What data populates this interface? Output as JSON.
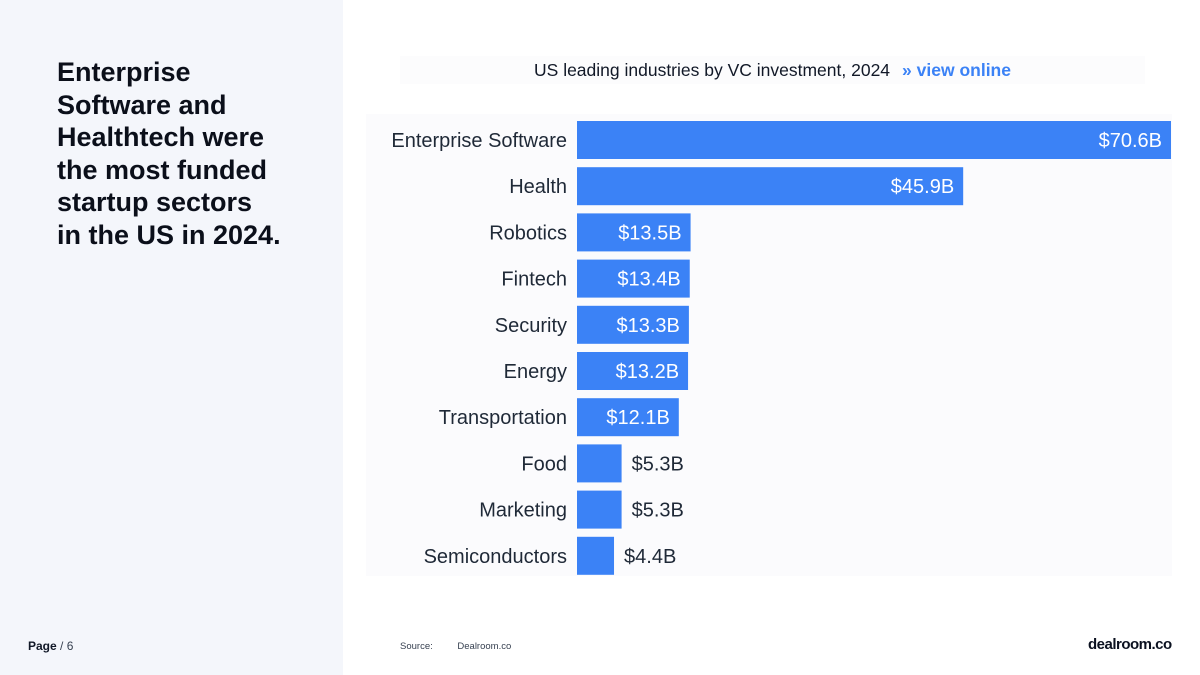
{
  "headline": {
    "lines": [
      "Enterprise",
      "Software and",
      "Healthtech were",
      "the most funded",
      "startup sectors",
      "in the US in 2024."
    ]
  },
  "footer": {
    "page_label": "Page",
    "page_number": "/ 6",
    "source_label": "Source:",
    "source_value": "Dealroom.co",
    "logo": "dealroom.co"
  },
  "chart_header": {
    "title": "US leading industries by VC investment, 2024",
    "link_arrow": "»",
    "link_label": "view online"
  },
  "colors": {
    "bar": "#3b82f6",
    "label_inside": "#ffffff",
    "label_outside": "#1f2937"
  },
  "chart_data": {
    "type": "bar",
    "orientation": "horizontal",
    "title": "US leading industries by VC investment, 2024",
    "categories": [
      "Enterprise Software",
      "Health",
      "Robotics",
      "Fintech",
      "Security",
      "Energy",
      "Transportation",
      "Food",
      "Marketing",
      "Semiconductors"
    ],
    "values": [
      70.6,
      45.9,
      13.5,
      13.4,
      13.3,
      13.2,
      12.1,
      5.3,
      5.3,
      4.4
    ],
    "value_labels": [
      "$70.6B",
      "$45.9B",
      "$13.5B",
      "$13.4B",
      "$13.3B",
      "$13.2B",
      "$12.1B",
      "$5.3B",
      "$5.3B",
      "$4.4B"
    ],
    "unit": "USD billions",
    "xlim": [
      0,
      70.6
    ],
    "xlabel": "",
    "ylabel": ""
  }
}
